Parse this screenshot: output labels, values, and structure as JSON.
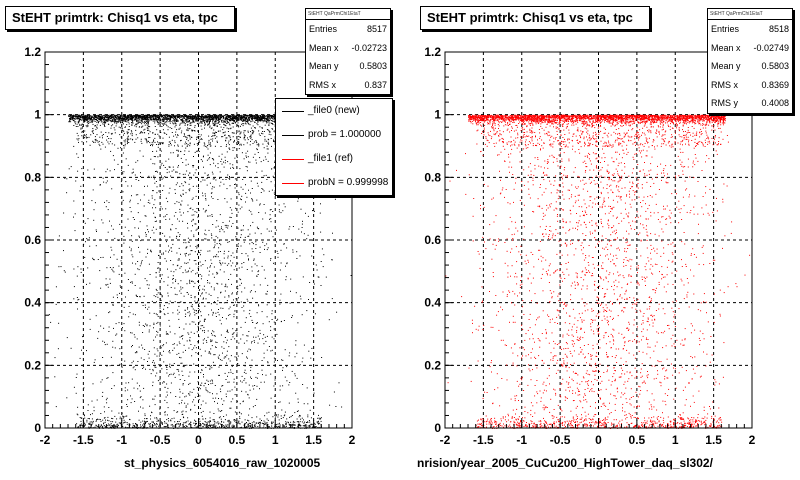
{
  "chart_data": [
    {
      "type": "scatter",
      "title": "StEHT primtrk: Chisq1 vs eta, tpc",
      "xlim": [
        -2,
        2
      ],
      "ylim": [
        0,
        1.2
      ],
      "x_ticks": [
        "-2",
        "-1.5",
        "-1",
        "-0.5",
        "0",
        "0.5",
        "1",
        "1.5",
        "2"
      ],
      "y_ticks": [
        "0",
        "0.2",
        "0.4",
        "0.6",
        "0.8",
        "1",
        "1.2"
      ],
      "grid": true,
      "marker_color": "#000000",
      "xlabel": "st_physics_6054016_raw_1020005",
      "stats": {
        "name": "StEHT QaPrmChi1EtaT",
        "rows": [
          {
            "label": "Entries",
            "value": "8517"
          },
          {
            "label": "Mean x",
            "value": "-0.02723"
          },
          {
            "label": "Mean y",
            "value": "0.5803"
          },
          {
            "label": "RMS x",
            "value": "0.837"
          }
        ]
      },
      "legend": [
        {
          "label": "_file0 (new)",
          "color": "#000000"
        },
        {
          "label": "prob = 1.000000",
          "color": "#000000"
        },
        {
          "label": "_file1 (ref)",
          "color": "#ff0000"
        },
        {
          "label": "probN = 0.999998",
          "color": "#ff0000"
        }
      ]
    },
    {
      "type": "scatter",
      "title": "StEHT primtrk: Chisq1 vs eta, tpc",
      "xlim": [
        -2,
        2
      ],
      "ylim": [
        0,
        1.2
      ],
      "x_ticks": [
        "-2",
        "-1.5",
        "-1",
        "-0.5",
        "0",
        "0.5",
        "1",
        "1.5",
        "2"
      ],
      "y_ticks": [
        "0",
        "0.2",
        "0.4",
        "0.6",
        "0.8",
        "1",
        "1.2"
      ],
      "grid": true,
      "marker_color": "#ff0000",
      "xlabel": "nrision/year_2005_CuCu200_HighTower_daq_sl302/",
      "stats": {
        "name": "StEHT QaPrmChi1EtaT",
        "rows": [
          {
            "label": "Entries",
            "value": "8518"
          },
          {
            "label": "Mean x",
            "value": "-0.02749"
          },
          {
            "label": "Mean y",
            "value": "0.5803"
          },
          {
            "label": "RMS x",
            "value": "0.8369"
          },
          {
            "label": "RMS y",
            "value": "0.4008"
          }
        ]
      }
    }
  ]
}
